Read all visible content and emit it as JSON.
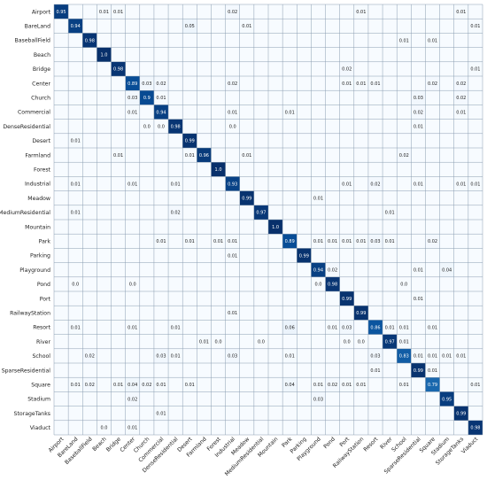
{
  "chart_data": {
    "type": "heatmap",
    "title": "",
    "xlabel": "",
    "ylabel": "",
    "colormap": "Blues",
    "grid": true,
    "colors": {
      "high": "#08306b",
      "low": "#f7fbff",
      "grid": "#8a9db0"
    },
    "labels": [
      "Airport",
      "BareLand",
      "BaseballField",
      "Beach",
      "Bridge",
      "Center",
      "Church",
      "Commercial",
      "DenseResidential",
      "Desert",
      "Farmland",
      "Forest",
      "Industrial",
      "Meadow",
      "MediumResidential",
      "Mountain",
      "Park",
      "Parking",
      "Playground",
      "Pond",
      "Port",
      "RailwayStation",
      "Resort",
      "River",
      "School",
      "SparseResidential",
      "Square",
      "Stadium",
      "StorageTanks",
      "Viaduct"
    ],
    "cells": [
      [
        0,
        0,
        "0.95"
      ],
      [
        0,
        3,
        "0.01"
      ],
      [
        0,
        4,
        "0.01"
      ],
      [
        0,
        12,
        "0.02"
      ],
      [
        0,
        21,
        "0.01"
      ],
      [
        0,
        28,
        "0.01"
      ],
      [
        1,
        1,
        "0.94"
      ],
      [
        1,
        9,
        "0.05"
      ],
      [
        1,
        13,
        "0.01"
      ],
      [
        1,
        29,
        "0.01"
      ],
      [
        2,
        2,
        "0.98"
      ],
      [
        2,
        24,
        "0.01"
      ],
      [
        2,
        26,
        "0.01"
      ],
      [
        3,
        3,
        "1.0"
      ],
      [
        4,
        4,
        "0.98"
      ],
      [
        4,
        20,
        "0.02"
      ],
      [
        4,
        29,
        "0.01"
      ],
      [
        5,
        5,
        "0.89"
      ],
      [
        5,
        6,
        "0.03"
      ],
      [
        5,
        7,
        "0.02"
      ],
      [
        5,
        12,
        "0.02"
      ],
      [
        5,
        20,
        "0.01"
      ],
      [
        5,
        21,
        "0.01"
      ],
      [
        5,
        22,
        "0.01"
      ],
      [
        5,
        26,
        "0.02"
      ],
      [
        5,
        28,
        "0.02"
      ],
      [
        6,
        5,
        "0.03"
      ],
      [
        6,
        6,
        "0.9"
      ],
      [
        6,
        7,
        "0.01"
      ],
      [
        6,
        25,
        "0.03"
      ],
      [
        6,
        28,
        "0.02"
      ],
      [
        7,
        5,
        "0.01"
      ],
      [
        7,
        7,
        "0.94"
      ],
      [
        7,
        12,
        "0.01"
      ],
      [
        7,
        16,
        "0.01"
      ],
      [
        7,
        25,
        "0.02"
      ],
      [
        7,
        28,
        "0.01"
      ],
      [
        8,
        6,
        "0.0"
      ],
      [
        8,
        7,
        "0.0"
      ],
      [
        8,
        8,
        "0.98"
      ],
      [
        8,
        12,
        "0.0"
      ],
      [
        8,
        25,
        "0.01"
      ],
      [
        9,
        1,
        "0.01"
      ],
      [
        9,
        9,
        "0.99"
      ],
      [
        10,
        4,
        "0.01"
      ],
      [
        10,
        9,
        "0.01"
      ],
      [
        10,
        10,
        "0.96"
      ],
      [
        10,
        13,
        "0.01"
      ],
      [
        10,
        24,
        "0.02"
      ],
      [
        11,
        11,
        "1.0"
      ],
      [
        12,
        1,
        "0.01"
      ],
      [
        12,
        5,
        "0.01"
      ],
      [
        12,
        8,
        "0.01"
      ],
      [
        12,
        12,
        "0.93"
      ],
      [
        12,
        20,
        "0.01"
      ],
      [
        12,
        22,
        "0.02"
      ],
      [
        12,
        25,
        "0.01"
      ],
      [
        12,
        28,
        "0.01"
      ],
      [
        12,
        29,
        "0.01"
      ],
      [
        13,
        13,
        "0.99"
      ],
      [
        13,
        18,
        "0.01"
      ],
      [
        14,
        1,
        "0.01"
      ],
      [
        14,
        8,
        "0.02"
      ],
      [
        14,
        14,
        "0.97"
      ],
      [
        14,
        23,
        "0.01"
      ],
      [
        15,
        15,
        "1.0"
      ],
      [
        16,
        7,
        "0.01"
      ],
      [
        16,
        9,
        "0.01"
      ],
      [
        16,
        11,
        "0.01"
      ],
      [
        16,
        12,
        "0.01"
      ],
      [
        16,
        16,
        "0.89"
      ],
      [
        16,
        18,
        "0.01"
      ],
      [
        16,
        19,
        "0.01"
      ],
      [
        16,
        20,
        "0.01"
      ],
      [
        16,
        21,
        "0.01"
      ],
      [
        16,
        22,
        "0.03"
      ],
      [
        16,
        23,
        "0.01"
      ],
      [
        16,
        26,
        "0.02"
      ],
      [
        17,
        12,
        "0.01"
      ],
      [
        17,
        17,
        "0.99"
      ],
      [
        18,
        18,
        "0.94"
      ],
      [
        18,
        19,
        "0.02"
      ],
      [
        18,
        25,
        "0.01"
      ],
      [
        18,
        27,
        "0.04"
      ],
      [
        19,
        1,
        "0.0"
      ],
      [
        19,
        5,
        "0.0"
      ],
      [
        19,
        18,
        "0.0"
      ],
      [
        19,
        19,
        "0.98"
      ],
      [
        19,
        24,
        "0.0"
      ],
      [
        20,
        20,
        "0.99"
      ],
      [
        20,
        25,
        "0.01"
      ],
      [
        21,
        12,
        "0.01"
      ],
      [
        21,
        21,
        "0.99"
      ],
      [
        22,
        1,
        "0.01"
      ],
      [
        22,
        5,
        "0.01"
      ],
      [
        22,
        8,
        "0.01"
      ],
      [
        22,
        16,
        "0.06"
      ],
      [
        22,
        19,
        "0.01"
      ],
      [
        22,
        20,
        "0.03"
      ],
      [
        22,
        22,
        "0.86"
      ],
      [
        22,
        23,
        "0.01"
      ],
      [
        22,
        24,
        "0.01"
      ],
      [
        22,
        26,
        "0.01"
      ],
      [
        23,
        10,
        "0.01"
      ],
      [
        23,
        11,
        "0.0"
      ],
      [
        23,
        14,
        "0.0"
      ],
      [
        23,
        20,
        "0.0"
      ],
      [
        23,
        21,
        "0.0"
      ],
      [
        23,
        23,
        "0.97"
      ],
      [
        23,
        24,
        "0.01"
      ],
      [
        24,
        2,
        "0.02"
      ],
      [
        24,
        7,
        "0.03"
      ],
      [
        24,
        8,
        "0.01"
      ],
      [
        24,
        12,
        "0.03"
      ],
      [
        24,
        16,
        "0.01"
      ],
      [
        24,
        22,
        "0.03"
      ],
      [
        24,
        24,
        "0.83"
      ],
      [
        24,
        25,
        "0.01"
      ],
      [
        24,
        26,
        "0.01"
      ],
      [
        24,
        27,
        "0.01"
      ],
      [
        24,
        28,
        "0.01"
      ],
      [
        25,
        22,
        "0.01"
      ],
      [
        25,
        25,
        "0.99"
      ],
      [
        25,
        26,
        "0.01"
      ],
      [
        26,
        1,
        "0.01"
      ],
      [
        26,
        2,
        "0.02"
      ],
      [
        26,
        4,
        "0.01"
      ],
      [
        26,
        5,
        "0.04"
      ],
      [
        26,
        6,
        "0.02"
      ],
      [
        26,
        7,
        "0.01"
      ],
      [
        26,
        9,
        "0.01"
      ],
      [
        26,
        16,
        "0.04"
      ],
      [
        26,
        18,
        "0.01"
      ],
      [
        26,
        19,
        "0.02"
      ],
      [
        26,
        20,
        "0.01"
      ],
      [
        26,
        21,
        "0.01"
      ],
      [
        26,
        24,
        "0.01"
      ],
      [
        26,
        26,
        "0.79"
      ],
      [
        26,
        29,
        "0.01"
      ],
      [
        27,
        5,
        "0.02"
      ],
      [
        27,
        18,
        "0.03"
      ],
      [
        27,
        27,
        "0.95"
      ],
      [
        28,
        7,
        "0.01"
      ],
      [
        28,
        28,
        "0.99"
      ],
      [
        29,
        3,
        "0.0"
      ],
      [
        29,
        5,
        "0.01"
      ],
      [
        29,
        29,
        "0.98"
      ]
    ]
  }
}
